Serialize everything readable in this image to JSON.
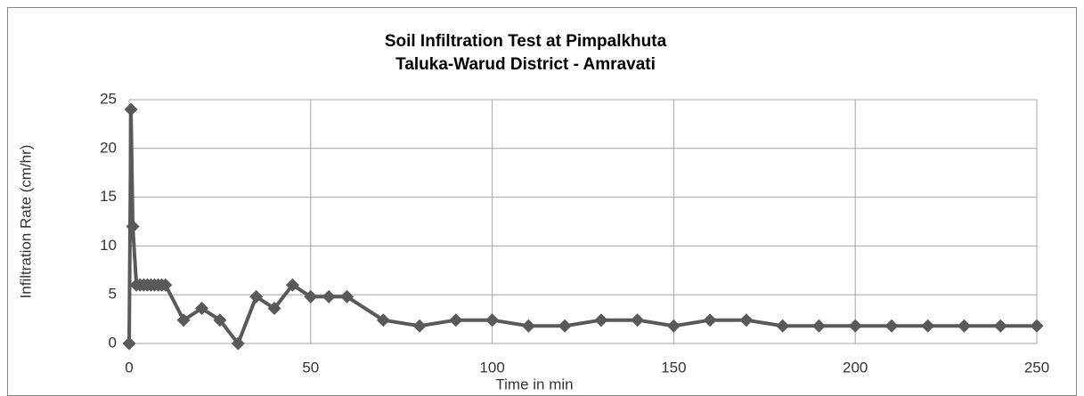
{
  "chart_data": {
    "type": "line",
    "title": "Soil Infiltration Test at Pimpalkhuta",
    "subtitle": "Taluka-Warud District - Amravati",
    "x_label": "Time in min",
    "y_label": "Infiltration Rate (cm/hr)",
    "x": [
      0,
      0.5,
      1,
      2,
      3,
      4,
      5,
      6,
      7,
      8,
      9,
      10,
      15,
      20,
      25,
      30,
      35,
      40,
      45,
      50,
      55,
      60,
      70,
      80,
      90,
      100,
      110,
      120,
      130,
      140,
      150,
      160,
      170,
      180,
      190,
      200,
      210,
      220,
      230,
      240,
      250
    ],
    "series": [
      {
        "name": "Infiltration Rate",
        "color": "#595959",
        "values": [
          0,
          24,
          12,
          6,
          6,
          6,
          6,
          6,
          6,
          6,
          6,
          6,
          2.4,
          3.6,
          2.4,
          0,
          4.8,
          3.6,
          6,
          4.8,
          4.8,
          4.8,
          2.4,
          1.8,
          2.4,
          2.4,
          1.8,
          1.8,
          2.4,
          2.4,
          1.8,
          2.4,
          2.4,
          1.8,
          1.8,
          1.8,
          1.8,
          1.8,
          1.8,
          1.8,
          1.8
        ]
      }
    ],
    "xlim": [
      0,
      250
    ],
    "xticks": [
      0,
      50,
      100,
      150,
      200,
      250
    ],
    "ylim": [
      0,
      25
    ],
    "yticks": [
      0,
      5,
      10,
      15,
      20,
      25
    ],
    "grid": true
  }
}
